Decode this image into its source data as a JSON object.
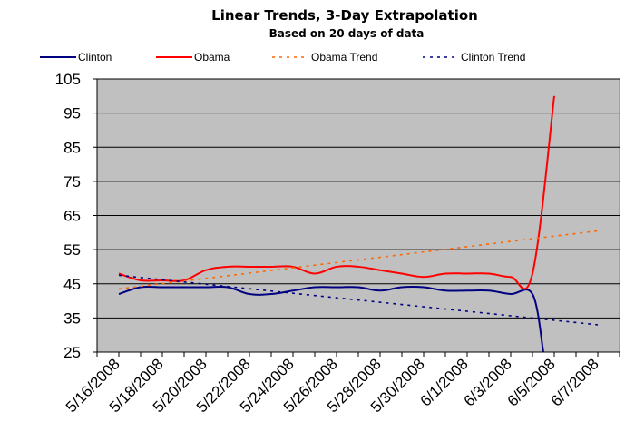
{
  "chart_data": {
    "type": "line",
    "title": "Linear Trends, 3-Day Extrapolation",
    "subtitle": "Based on 20 days of data",
    "x_tick_labels": [
      "5/16/2008",
      "5/18/2008",
      "5/20/2008",
      "5/22/2008",
      "5/24/2008",
      "5/26/2008",
      "5/28/2008",
      "5/30/2008",
      "6/1/2008",
      "6/3/2008",
      "6/5/2008",
      "6/7/2008"
    ],
    "xlim": [
      "2008-05-15",
      "2008-06-08"
    ],
    "ylim": [
      25,
      105
    ],
    "y_ticks": [
      25,
      35,
      45,
      55,
      65,
      75,
      85,
      95,
      105
    ],
    "grid": true,
    "plot_background": "#c0c0c0",
    "legend_position": "top",
    "series": [
      {
        "name": "Clinton",
        "color": "#000080",
        "style": "solid",
        "points": [
          [
            "2008-05-16",
            42
          ],
          [
            "2008-05-17",
            44
          ],
          [
            "2008-05-18",
            44
          ],
          [
            "2008-05-19",
            44
          ],
          [
            "2008-05-20",
            44
          ],
          [
            "2008-05-21",
            44
          ],
          [
            "2008-05-22",
            42
          ],
          [
            "2008-05-23",
            42
          ],
          [
            "2008-05-24",
            43
          ],
          [
            "2008-05-25",
            44
          ],
          [
            "2008-05-26",
            44
          ],
          [
            "2008-05-27",
            44
          ],
          [
            "2008-05-28",
            43
          ],
          [
            "2008-05-29",
            44
          ],
          [
            "2008-05-30",
            44
          ],
          [
            "2008-05-31",
            43
          ],
          [
            "2008-06-01",
            43
          ],
          [
            "2008-06-02",
            43
          ],
          [
            "2008-06-03",
            42
          ],
          [
            "2008-06-04",
            42
          ],
          [
            "2008-06-04T12:00",
            25
          ]
        ]
      },
      {
        "name": "Obama",
        "color": "#ff0000",
        "style": "solid",
        "points": [
          [
            "2008-05-16",
            48
          ],
          [
            "2008-05-17",
            46
          ],
          [
            "2008-05-18",
            46
          ],
          [
            "2008-05-19",
            46
          ],
          [
            "2008-05-20",
            49
          ],
          [
            "2008-05-21",
            50
          ],
          [
            "2008-05-22",
            50
          ],
          [
            "2008-05-23",
            50
          ],
          [
            "2008-05-24",
            50
          ],
          [
            "2008-05-25",
            48
          ],
          [
            "2008-05-26",
            50
          ],
          [
            "2008-05-27",
            50
          ],
          [
            "2008-05-28",
            49
          ],
          [
            "2008-05-29",
            48
          ],
          [
            "2008-05-30",
            47
          ],
          [
            "2008-05-31",
            48
          ],
          [
            "2008-06-01",
            48
          ],
          [
            "2008-06-02",
            48
          ],
          [
            "2008-06-03",
            47
          ],
          [
            "2008-06-04",
            48
          ],
          [
            "2008-06-05",
            100
          ]
        ]
      },
      {
        "name": "Obama Trend",
        "color": "#ff6600",
        "style": "dashed",
        "points": [
          [
            "2008-05-16",
            43.5
          ],
          [
            "2008-06-07",
            60.5
          ]
        ]
      },
      {
        "name": "Clinton Trend",
        "color": "#000080",
        "style": "dashed",
        "points": [
          [
            "2008-05-16",
            47.5
          ],
          [
            "2008-06-07",
            33
          ]
        ]
      }
    ]
  }
}
